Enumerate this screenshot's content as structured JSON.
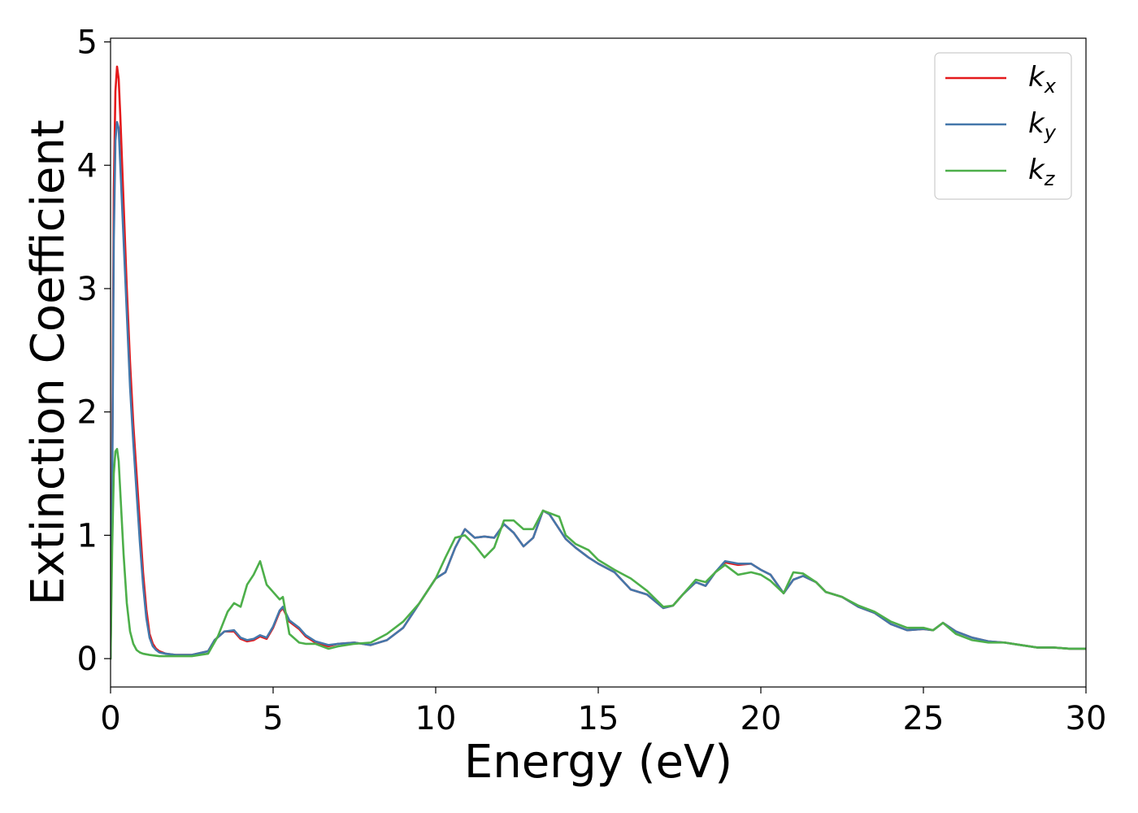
{
  "chart_data": {
    "type": "line",
    "xlabel": "Energy (eV)",
    "ylabel": "Extinction Coefficient",
    "xlim": [
      0,
      30
    ],
    "ylim": [
      -0.23,
      5.03
    ],
    "xticks": [
      "0",
      "5",
      "10",
      "15",
      "20",
      "25",
      "30"
    ],
    "yticks": [
      "0",
      "1",
      "2",
      "3",
      "4",
      "5"
    ],
    "grid": false,
    "legend_position": "top-right",
    "series": [
      {
        "name": "k",
        "subscript": "x",
        "color": "#e41a1c",
        "x": [
          0,
          0.05,
          0.1,
          0.15,
          0.2,
          0.25,
          0.3,
          0.4,
          0.5,
          0.6,
          0.7,
          0.8,
          0.9,
          1.0,
          1.1,
          1.2,
          1.3,
          1.4,
          1.5,
          1.7,
          2.0,
          2.5,
          3.0,
          3.2,
          3.5,
          3.8,
          4.0,
          4.2,
          4.4,
          4.6,
          4.8,
          5.0,
          5.2,
          5.3,
          5.5,
          5.8,
          6.0,
          6.3,
          6.7,
          7.0,
          7.5,
          8.0,
          8.5,
          9.0,
          9.5,
          10.0,
          10.3,
          10.6,
          10.9,
          11.2,
          11.5,
          11.8,
          12.1,
          12.4,
          12.7,
          13.0,
          13.3,
          13.5,
          13.8,
          14.0,
          14.3,
          14.7,
          15.0,
          15.5,
          16.0,
          16.5,
          17.0,
          17.3,
          17.6,
          18.0,
          18.3,
          18.6,
          18.9,
          19.3,
          19.7,
          20.0,
          20.3,
          20.7,
          21.0,
          21.3,
          21.7,
          22.0,
          22.5,
          23.0,
          23.5,
          24.0,
          24.5,
          25.0,
          25.3,
          25.6,
          26.0,
          26.5,
          27.0,
          27.5,
          28.0,
          28.5,
          29.0,
          29.5,
          30.0
        ],
        "y": [
          0.0,
          1.5,
          3.8,
          4.6,
          4.8,
          4.7,
          4.4,
          3.7,
          3.0,
          2.4,
          1.9,
          1.5,
          1.1,
          0.7,
          0.4,
          0.2,
          0.12,
          0.08,
          0.06,
          0.04,
          0.03,
          0.03,
          0.06,
          0.15,
          0.22,
          0.22,
          0.16,
          0.14,
          0.15,
          0.18,
          0.16,
          0.25,
          0.38,
          0.41,
          0.3,
          0.24,
          0.18,
          0.13,
          0.1,
          0.12,
          0.13,
          0.11,
          0.15,
          0.25,
          0.45,
          0.65,
          0.7,
          0.9,
          1.05,
          0.98,
          0.99,
          0.98,
          1.09,
          1.02,
          0.91,
          0.98,
          1.2,
          1.17,
          1.05,
          0.97,
          0.9,
          0.82,
          0.77,
          0.7,
          0.56,
          0.52,
          0.41,
          0.43,
          0.52,
          0.62,
          0.59,
          0.7,
          0.78,
          0.76,
          0.77,
          0.72,
          0.68,
          0.53,
          0.64,
          0.67,
          0.62,
          0.54,
          0.5,
          0.42,
          0.37,
          0.28,
          0.23,
          0.24,
          0.23,
          0.29,
          0.22,
          0.17,
          0.14,
          0.13,
          0.11,
          0.09,
          0.09,
          0.08,
          0.08
        ]
      },
      {
        "name": "k",
        "subscript": "y",
        "color": "#4477aa",
        "x": [
          0,
          0.05,
          0.1,
          0.15,
          0.2,
          0.25,
          0.3,
          0.4,
          0.5,
          0.6,
          0.7,
          0.8,
          0.9,
          1.0,
          1.1,
          1.2,
          1.3,
          1.4,
          1.5,
          1.7,
          2.0,
          2.5,
          3.0,
          3.2,
          3.5,
          3.8,
          4.0,
          4.2,
          4.4,
          4.6,
          4.8,
          5.0,
          5.2,
          5.3,
          5.5,
          5.8,
          6.0,
          6.3,
          6.7,
          7.0,
          7.5,
          8.0,
          8.5,
          9.0,
          9.5,
          10.0,
          10.3,
          10.6,
          10.9,
          11.2,
          11.5,
          11.8,
          12.1,
          12.4,
          12.7,
          13.0,
          13.3,
          13.5,
          13.8,
          14.0,
          14.3,
          14.7,
          15.0,
          15.5,
          16.0,
          16.5,
          17.0,
          17.3,
          17.6,
          18.0,
          18.3,
          18.6,
          18.9,
          19.3,
          19.7,
          20.0,
          20.3,
          20.7,
          21.0,
          21.3,
          21.7,
          22.0,
          22.5,
          23.0,
          23.5,
          24.0,
          24.5,
          25.0,
          25.3,
          25.6,
          26.0,
          26.5,
          27.0,
          27.5,
          28.0,
          28.5,
          29.0,
          29.5,
          30.0
        ],
        "y": [
          0.0,
          1.3,
          3.4,
          4.2,
          4.35,
          4.3,
          4.0,
          3.4,
          2.8,
          2.2,
          1.75,
          1.35,
          0.95,
          0.6,
          0.33,
          0.17,
          0.1,
          0.07,
          0.05,
          0.04,
          0.03,
          0.03,
          0.06,
          0.15,
          0.22,
          0.23,
          0.17,
          0.15,
          0.16,
          0.19,
          0.17,
          0.26,
          0.39,
          0.42,
          0.31,
          0.25,
          0.19,
          0.14,
          0.11,
          0.12,
          0.13,
          0.11,
          0.15,
          0.25,
          0.45,
          0.65,
          0.7,
          0.9,
          1.05,
          0.98,
          0.99,
          0.98,
          1.09,
          1.02,
          0.91,
          0.98,
          1.2,
          1.17,
          1.05,
          0.97,
          0.9,
          0.82,
          0.77,
          0.7,
          0.56,
          0.52,
          0.41,
          0.43,
          0.52,
          0.62,
          0.59,
          0.7,
          0.79,
          0.77,
          0.77,
          0.72,
          0.68,
          0.53,
          0.64,
          0.67,
          0.62,
          0.54,
          0.5,
          0.42,
          0.37,
          0.28,
          0.23,
          0.24,
          0.23,
          0.29,
          0.22,
          0.17,
          0.14,
          0.13,
          0.11,
          0.09,
          0.09,
          0.08,
          0.08
        ]
      },
      {
        "name": "k",
        "subscript": "z",
        "color": "#4daf4a",
        "x": [
          0,
          0.05,
          0.1,
          0.15,
          0.2,
          0.25,
          0.3,
          0.4,
          0.5,
          0.6,
          0.7,
          0.8,
          0.9,
          1.0,
          1.2,
          1.5,
          2.0,
          2.5,
          3.0,
          3.3,
          3.6,
          3.8,
          4.0,
          4.2,
          4.4,
          4.6,
          4.8,
          5.0,
          5.2,
          5.3,
          5.5,
          5.8,
          6.0,
          6.3,
          6.7,
          7.0,
          7.5,
          8.0,
          8.5,
          9.0,
          9.5,
          10.0,
          10.3,
          10.6,
          10.9,
          11.2,
          11.5,
          11.8,
          12.1,
          12.4,
          12.7,
          13.0,
          13.3,
          13.5,
          13.8,
          14.0,
          14.3,
          14.7,
          15.0,
          15.5,
          16.0,
          16.5,
          17.0,
          17.3,
          17.6,
          18.0,
          18.3,
          18.6,
          18.9,
          19.3,
          19.7,
          20.0,
          20.3,
          20.7,
          21.0,
          21.3,
          21.7,
          22.0,
          22.5,
          23.0,
          23.5,
          24.0,
          24.5,
          25.0,
          25.3,
          25.6,
          26.0,
          26.5,
          27.0,
          27.5,
          28.0,
          28.5,
          29.0,
          29.5,
          30.0
        ],
        "y": [
          0.0,
          0.9,
          1.5,
          1.68,
          1.7,
          1.6,
          1.35,
          0.85,
          0.45,
          0.22,
          0.12,
          0.07,
          0.05,
          0.04,
          0.03,
          0.02,
          0.02,
          0.02,
          0.04,
          0.18,
          0.38,
          0.45,
          0.42,
          0.6,
          0.68,
          0.79,
          0.6,
          0.54,
          0.48,
          0.5,
          0.2,
          0.13,
          0.12,
          0.12,
          0.08,
          0.1,
          0.12,
          0.13,
          0.2,
          0.3,
          0.45,
          0.65,
          0.82,
          0.98,
          1.0,
          0.92,
          0.82,
          0.9,
          1.12,
          1.12,
          1.05,
          1.05,
          1.2,
          1.18,
          1.15,
          1.0,
          0.93,
          0.88,
          0.8,
          0.72,
          0.65,
          0.55,
          0.42,
          0.43,
          0.52,
          0.64,
          0.62,
          0.7,
          0.76,
          0.68,
          0.7,
          0.68,
          0.63,
          0.53,
          0.7,
          0.69,
          0.62,
          0.54,
          0.5,
          0.43,
          0.38,
          0.3,
          0.25,
          0.25,
          0.23,
          0.29,
          0.2,
          0.15,
          0.13,
          0.13,
          0.11,
          0.09,
          0.09,
          0.08,
          0.08
        ]
      }
    ]
  }
}
